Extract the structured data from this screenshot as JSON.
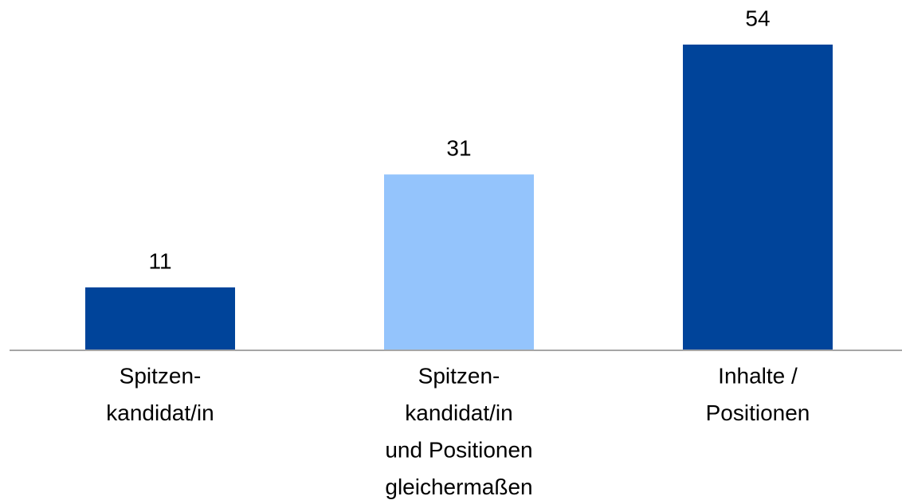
{
  "chart_data": {
    "type": "bar",
    "categories": [
      [
        "Spitzen-",
        "kandidat/in"
      ],
      [
        "Spitzen-",
        "kandidat/in",
        "und Positionen",
        "gleichermaßen"
      ],
      [
        "Inhalte /",
        "Positionen"
      ]
    ],
    "values": [
      11,
      31,
      54
    ],
    "colors": [
      "#00449a",
      "#94c4fc",
      "#00449a"
    ]
  }
}
